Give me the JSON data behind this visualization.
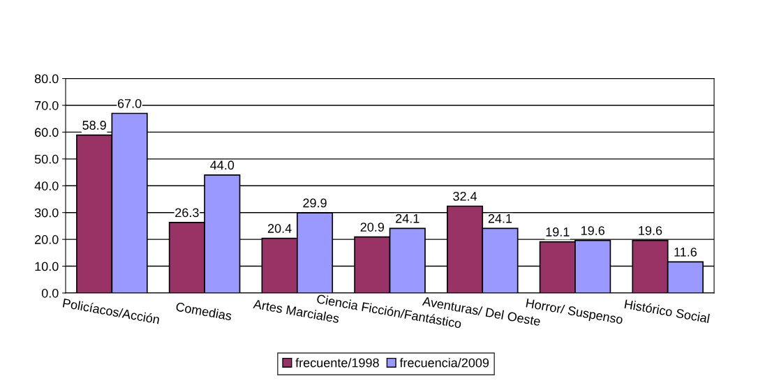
{
  "chart_data": {
    "type": "bar",
    "categories": [
      "Policíacos/Acción",
      "Comedias",
      "Artes Marciales",
      "Ciencia Ficción/Fantástico",
      "Aventuras/ Del Oeste",
      "Horror/ Suspenso",
      "Histórico Social"
    ],
    "series": [
      {
        "name": "frecuente/1998",
        "color": "#993366",
        "values": [
          58.9,
          26.3,
          20.4,
          20.9,
          32.4,
          19.1,
          19.6
        ],
        "value_labels": [
          "58.9",
          "26.3",
          "20.4",
          "20.9",
          "32.4",
          "19.1",
          "19.6"
        ]
      },
      {
        "name": "frecuencia/2009",
        "color": "#9999ff",
        "values": [
          67.0,
          44.0,
          29.9,
          24.1,
          24.1,
          19.6,
          11.6
        ],
        "value_labels": [
          "67.0",
          "44.0",
          "29.9",
          "24.1",
          "24.1",
          "19.6",
          "11.6"
        ]
      }
    ],
    "ylim": [
      0,
      80
    ],
    "yticks": [
      {
        "value": 0,
        "label": "0.0"
      },
      {
        "value": 10,
        "label": "10.0"
      },
      {
        "value": 20,
        "label": "20.0"
      },
      {
        "value": 30,
        "label": "30.0"
      },
      {
        "value": 40,
        "label": "40.0"
      },
      {
        "value": 50,
        "label": "50.0"
      },
      {
        "value": 60,
        "label": "60.0"
      },
      {
        "value": 70,
        "label": "70.0"
      },
      {
        "value": 80,
        "label": "80.0"
      }
    ],
    "grid": "y",
    "legend": "bottom"
  }
}
